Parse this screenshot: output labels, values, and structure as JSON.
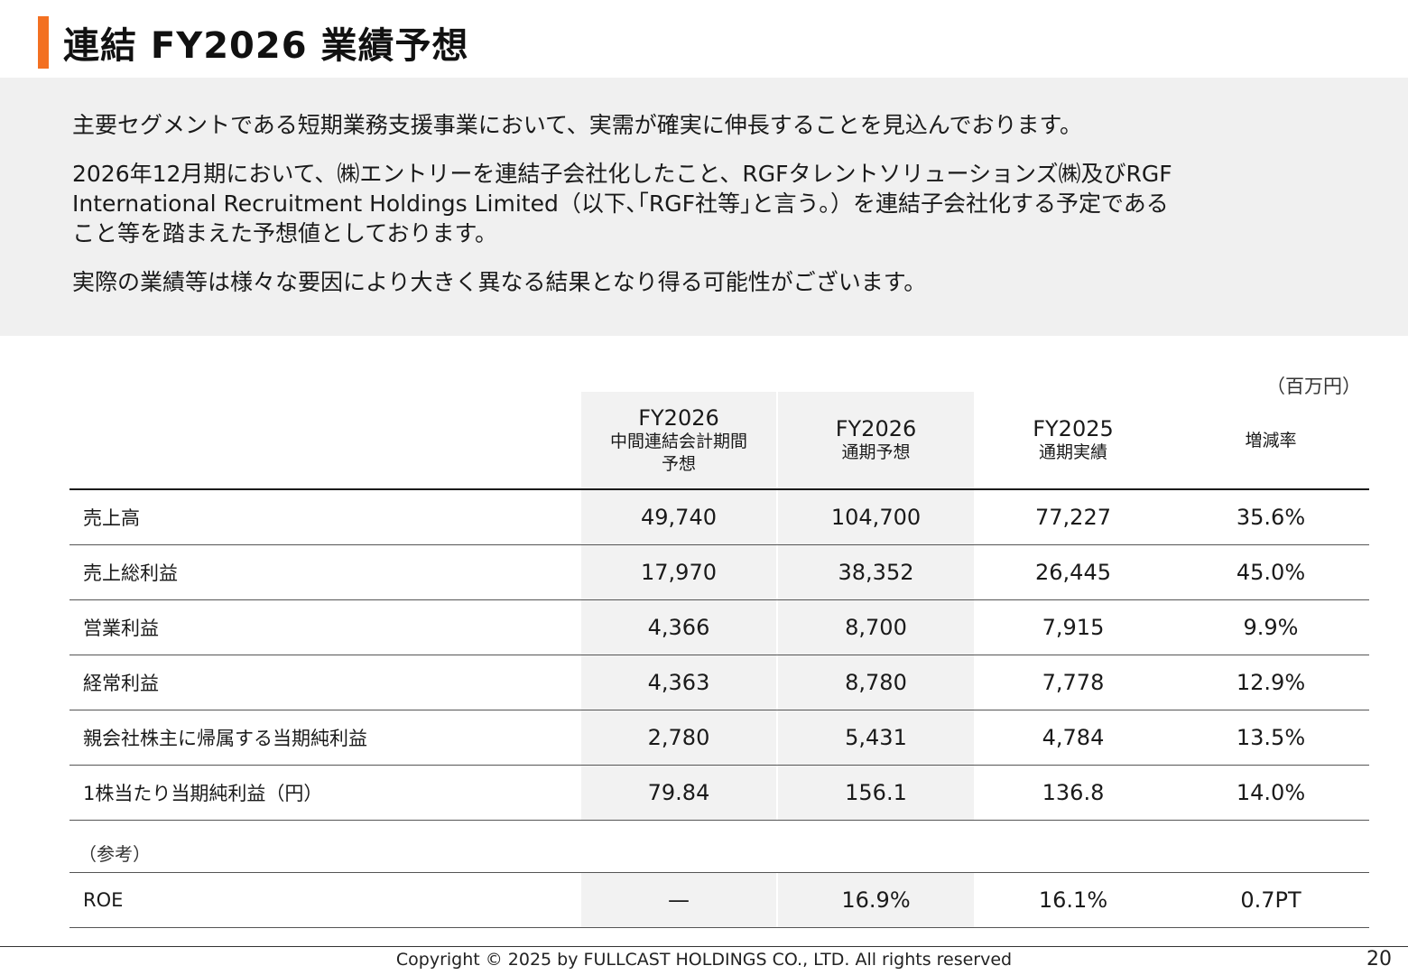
{
  "header": {
    "title": "連結 FY2026 業績予想",
    "accent_color": "#f37021"
  },
  "notes": [
    "主要セグメントである短期業務支援事業において、実需が確実に伸長することを見込んでおります。",
    "2026年12月期において、㈱エントリーを連結子会社化したこと、RGFタレントソリューションズ㈱及びRGF\nInternational Recruitment Holdings Limited（以下､｢RGF社等｣と言う｡）を連結子会社化する予定である\nこと等を踏まえた予想値としております。",
    "実際の業績等は様々な要因により大きく異なる結果となり得る可能性がございます。"
  ],
  "table": {
    "unit": "（百万円）",
    "columns": [
      {
        "fy": "FY2026",
        "sub": "中間連結会計期間\n予想"
      },
      {
        "fy": "FY2026",
        "sub": "通期予想"
      },
      {
        "fy": "FY2025",
        "sub": "通期実績"
      },
      {
        "fy": "",
        "sub": "増減率"
      }
    ],
    "rows": [
      {
        "label": "売上高",
        "values": [
          "49,740",
          "104,700",
          "77,227",
          "35.6%"
        ]
      },
      {
        "label": "売上総利益",
        "values": [
          "17,970",
          "38,352",
          "26,445",
          "45.0%"
        ]
      },
      {
        "label": "営業利益",
        "values": [
          "4,366",
          "8,700",
          "7,915",
          "9.9%"
        ]
      },
      {
        "label": "経常利益",
        "values": [
          "4,363",
          "8,780",
          "7,778",
          "12.9%"
        ]
      },
      {
        "label": "親会社株主に帰属する当期純利益",
        "values": [
          "2,780",
          "5,431",
          "4,784",
          "13.5%"
        ]
      },
      {
        "label": "1株当たり当期純利益（円）",
        "values": [
          "79.84",
          "156.1",
          "136.8",
          "14.0%"
        ]
      }
    ],
    "reference_label": "（参考）",
    "reference_rows": [
      {
        "label": "ROE",
        "values": [
          "—",
          "16.9%",
          "16.1%",
          "0.7PT"
        ]
      }
    ]
  },
  "footer": {
    "copyright": "Copyright © 2025 by FULLCAST HOLDINGS CO., LTD. All rights reserved",
    "page_number": "20"
  }
}
